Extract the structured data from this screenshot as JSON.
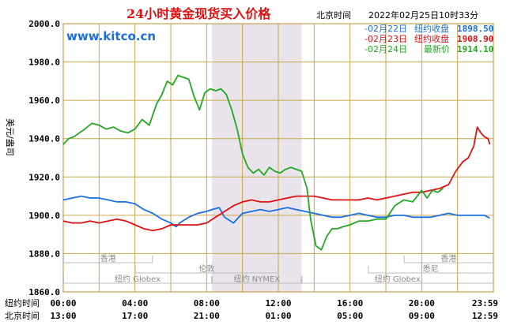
{
  "header": {
    "title": "24小时黄金现货买入价格",
    "clock_label": "北京时间",
    "timestamp": "2022年02月25日10时33分",
    "watermark": "www.kitco.cn"
  },
  "legend": [
    {
      "label": "-02月22日",
      "metric": "纽约收盘",
      "value": "1898.50",
      "color": "#1a6fe0"
    },
    {
      "label": "-02月23日",
      "metric": "纽约收盘",
      "value": "1908.90",
      "color": "#e01010"
    },
    {
      "label": "-02月24日",
      "metric": "最新价",
      "value": "1914.10",
      "color": "#22a822"
    }
  ],
  "axis": {
    "ylabel": "美元/盎司",
    "ny_time_label": "纽约时间",
    "bj_time_label": "北京时间",
    "ny_ticks": [
      "00:00",
      "04:00",
      "08:00",
      "12:00",
      "16:00",
      "20:00",
      "23:59"
    ],
    "bj_ticks": [
      "13:00",
      "17:00",
      "21:00",
      "01:00",
      "05:00",
      "09:00",
      "12:59"
    ]
  },
  "sessions": {
    "rows": [
      [
        {
          "label": "香港",
          "start": 0.0,
          "end": 5.0
        },
        {
          "label": "香港",
          "start": 19.0,
          "end": 24.0
        }
      ],
      [
        {
          "label": "伦敦",
          "start": 4.0,
          "end": 12.0
        },
        {
          "label": "悉尼",
          "start": 17.0,
          "end": 24.0
        }
      ],
      [
        {
          "label": "纽约 Globex",
          "start": 0.0,
          "end": 8.3
        },
        {
          "label": "纽约 NYMEX",
          "start": 8.3,
          "end": 13.3
        },
        {
          "label": "纽约 Globex",
          "start": 13.3,
          "end": 24.0
        }
      ]
    ],
    "highlight": {
      "start": 8.3,
      "end": 13.3
    }
  },
  "chart_data": {
    "type": "line",
    "ylim": [
      1860,
      2000
    ],
    "xlim": [
      0,
      24
    ],
    "yticks": [
      "1860.0",
      "1880.0",
      "1900.0",
      "1920.0",
      "1940.0",
      "1960.0",
      "1980.0",
      "2000.0"
    ],
    "grid": true,
    "series": [
      {
        "name": "02月22日",
        "color": "#1a6fe0",
        "x": [
          0,
          0.5,
          1,
          1.5,
          2,
          2.5,
          3,
          3.5,
          4,
          4.5,
          5,
          5.5,
          6,
          6.3,
          6.5,
          7,
          7.5,
          8,
          8.3,
          8.7,
          9,
          9.5,
          10,
          10.5,
          11,
          11.5,
          12,
          12.5,
          13,
          13.5,
          14,
          14.5,
          15,
          15.5,
          16,
          16.5,
          17,
          17.5,
          18,
          18.5,
          19,
          19.5,
          20,
          20.5,
          21,
          21.5,
          22,
          22.5,
          23,
          23.5,
          23.8
        ],
        "y": [
          1908,
          1909,
          1910,
          1909,
          1909,
          1908,
          1907,
          1907,
          1906,
          1903,
          1901,
          1898,
          1896,
          1894,
          1896,
          1899,
          1901,
          1902,
          1903,
          1904,
          1899,
          1896,
          1901,
          1902,
          1903,
          1902,
          1903,
          1904,
          1903,
          1902,
          1901,
          1900,
          1899,
          1899,
          1900,
          1901,
          1900,
          1899,
          1899,
          1900,
          1900,
          1899,
          1899,
          1899,
          1900,
          1901,
          1900,
          1900,
          1900,
          1900,
          1898.5
        ]
      },
      {
        "name": "02月23日",
        "color": "#e01010",
        "x": [
          0,
          0.5,
          1,
          1.5,
          2,
          2.5,
          3,
          3.5,
          4,
          4.5,
          5,
          5.5,
          6,
          6.5,
          7,
          7.5,
          8,
          8.5,
          9,
          9.5,
          10,
          10.5,
          11,
          11.5,
          12,
          12.5,
          13,
          13.5,
          14,
          14.5,
          15,
          15.5,
          16,
          16.5,
          17,
          17.5,
          18,
          18.5,
          19,
          19.5,
          20,
          20.5,
          21,
          21.5,
          21.9,
          22.3,
          22.6,
          22.9,
          23.1,
          23.3,
          23.5,
          23.7,
          23.8
        ],
        "y": [
          1897,
          1896,
          1896,
          1897,
          1896,
          1897,
          1898,
          1897,
          1895,
          1893,
          1892,
          1893,
          1895,
          1895,
          1895,
          1895,
          1896,
          1899,
          1902,
          1905,
          1907,
          1908,
          1907,
          1907,
          1908,
          1909,
          1910,
          1910,
          1910,
          1909,
          1908,
          1908,
          1908,
          1908,
          1909,
          1908,
          1909,
          1910,
          1911,
          1912,
          1912,
          1913,
          1914,
          1916,
          1923,
          1928,
          1930,
          1936,
          1946,
          1943,
          1941,
          1940,
          1937
        ]
      },
      {
        "name": "02月24日",
        "color": "#22a822",
        "x": [
          0,
          0.3,
          0.6,
          0.9,
          1.2,
          1.6,
          2,
          2.4,
          2.8,
          3.2,
          3.6,
          4,
          4.4,
          4.8,
          5.2,
          5.5,
          5.8,
          6.1,
          6.4,
          6.7,
          7,
          7.3,
          7.6,
          7.9,
          8.2,
          8.5,
          8.8,
          9.1,
          9.4,
          9.7,
          10,
          10.3,
          10.6,
          10.9,
          11.2,
          11.5,
          11.8,
          12.1,
          12.4,
          12.7,
          13,
          13.3,
          13.6,
          13.8,
          14.1,
          14.4,
          14.7,
          15,
          15.3,
          15.6,
          16,
          16.5,
          17,
          17.5,
          18,
          18.5,
          19,
          19.5,
          20,
          20.3,
          20.6,
          20.9,
          21.2
        ],
        "y": [
          1937,
          1940,
          1941,
          1943,
          1945,
          1948,
          1947,
          1945,
          1946,
          1944,
          1943,
          1945,
          1950,
          1947,
          1958,
          1963,
          1970,
          1968,
          1973,
          1972,
          1971,
          1962,
          1955,
          1964,
          1966,
          1965,
          1966,
          1963,
          1955,
          1945,
          1932,
          1925,
          1922,
          1924,
          1921,
          1925,
          1923,
          1922,
          1924,
          1925,
          1924,
          1923,
          1914,
          1898,
          1884,
          1882,
          1889,
          1893,
          1893,
          1894,
          1895,
          1897,
          1897,
          1898,
          1898,
          1905,
          1908,
          1907,
          1913,
          1909,
          1913,
          1912,
          1914.1
        ]
      }
    ]
  }
}
